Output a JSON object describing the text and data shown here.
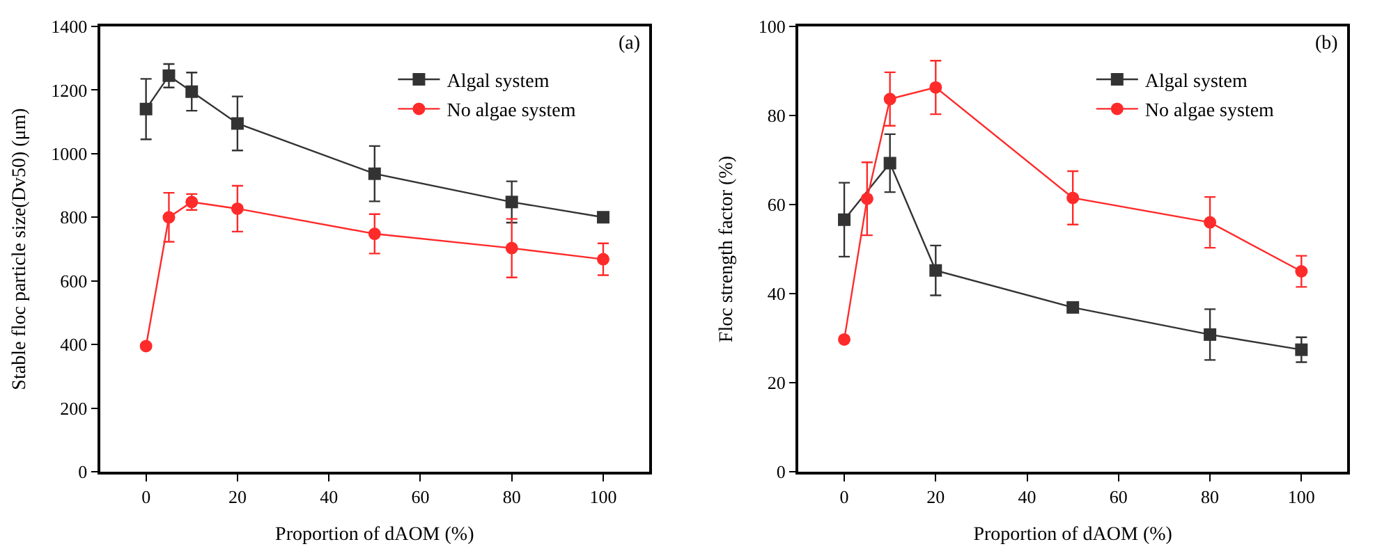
{
  "chart_data": [
    {
      "type": "line",
      "annotations": [
        "(a)"
      ],
      "xlabel": "Proportion of dAOM (%)",
      "ylabel": "Stable floc particle size(Dv50) (μm)",
      "x": [
        0,
        5,
        10,
        20,
        50,
        80,
        100
      ],
      "xlim": [
        -10,
        110
      ],
      "xticks": [
        0,
        20,
        40,
        60,
        80,
        100
      ],
      "ylim": [
        0,
        1400
      ],
      "yticks": [
        0,
        200,
        400,
        600,
        800,
        1000,
        1200,
        1400
      ],
      "legend": "top right",
      "series": [
        {
          "name": "Algal system",
          "color": "#333333",
          "marker": "square",
          "values": [
            1140,
            1245,
            1195,
            1095,
            937,
            848,
            800
          ],
          "errors": [
            95,
            37,
            60,
            85,
            87,
            65,
            null
          ]
        },
        {
          "name": "No algae system",
          "color": "#ff2a2a",
          "marker": "circle",
          "values": [
            395,
            800,
            848,
            827,
            748,
            703,
            668
          ],
          "errors": [
            null,
            77,
            25,
            72,
            62,
            92,
            50
          ]
        }
      ]
    },
    {
      "type": "line",
      "annotations": [
        "(b)"
      ],
      "xlabel": "Proportion of dAOM (%)",
      "ylabel": "Floc strength factor (%)",
      "x": [
        0,
        5,
        10,
        20,
        50,
        80,
        100
      ],
      "xlim": [
        -10,
        110
      ],
      "xticks": [
        0,
        20,
        40,
        60,
        80,
        100
      ],
      "ylim": [
        0,
        100
      ],
      "yticks": [
        0,
        20,
        40,
        60,
        80,
        100
      ],
      "legend": "top right",
      "series": [
        {
          "name": "Algal system",
          "color": "#333333",
          "marker": "square",
          "values": [
            56.6,
            null,
            69.3,
            45.2,
            36.9,
            30.8,
            27.4
          ],
          "errors": [
            8.3,
            null,
            6.5,
            5.6,
            null,
            5.7,
            2.8
          ]
        },
        {
          "name": "No algae system",
          "color": "#ff2a2a",
          "marker": "circle",
          "values": [
            29.7,
            61.3,
            83.7,
            86.3,
            61.5,
            56,
            45
          ],
          "errors": [
            null,
            8.2,
            6,
            6,
            6,
            5.7,
            3.5
          ]
        }
      ]
    }
  ]
}
